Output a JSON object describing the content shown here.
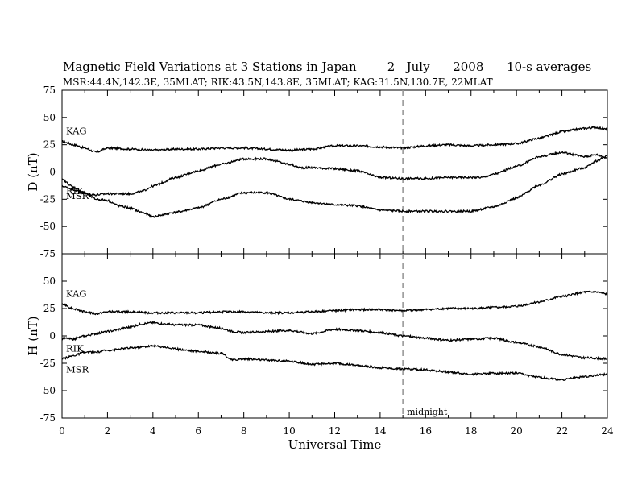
{
  "title": "Magnetic Field Variations at 3 Stations in Japan        2   July      2008      10-s averages",
  "subtitle": "MSR:44.4N,142.3E, 35MLAT;  RIK:43.5N,143.8E, 35MLAT;  KAG:31.5N,130.7E, 22MLAT",
  "chart_data": [
    {
      "type": "line",
      "panel": "D",
      "title": "",
      "ylabel": "D (nT)",
      "xlabel": "",
      "xlim": [
        0,
        24
      ],
      "ylim": [
        -75,
        75
      ],
      "y_ticks": [
        -75,
        -50,
        -25,
        0,
        25,
        50,
        75
      ],
      "x_ticks": [
        0,
        2,
        4,
        6,
        8,
        10,
        12,
        14,
        16,
        18,
        20,
        22,
        24
      ],
      "grid": false,
      "annotations": [
        {
          "type": "vertical-dashed-line",
          "x": 15
        }
      ],
      "series": [
        {
          "name": "KAG",
          "x": [
            0,
            0.5,
            1,
            1.5,
            2,
            3,
            4,
            5,
            6,
            7,
            8,
            9,
            10,
            11,
            12,
            13,
            14,
            15,
            16,
            17,
            18,
            19,
            20,
            21,
            22,
            23,
            23.5,
            24
          ],
          "values": [
            28,
            25,
            22,
            18,
            22,
            21,
            20,
            21,
            21,
            22,
            22,
            21,
            20,
            21,
            24,
            24,
            23,
            22,
            24,
            25,
            24,
            25,
            26,
            31,
            37,
            40,
            41,
            39
          ]
        },
        {
          "name": "MSR",
          "x": [
            0,
            0.5,
            1,
            1.5,
            2,
            3,
            3.5,
            4,
            5,
            6,
            7,
            8,
            9,
            10,
            10.5,
            11,
            12,
            13,
            14,
            15,
            16,
            17,
            18,
            18.5,
            19,
            20,
            21,
            22,
            23,
            23.5,
            24
          ],
          "values": [
            -13,
            -16,
            -20,
            -21,
            -20,
            -20,
            -18,
            -13,
            -5,
            1,
            7,
            12,
            12,
            7,
            4,
            4,
            3,
            1,
            -5,
            -6,
            -6,
            -5,
            -5,
            -5,
            -2,
            5,
            14,
            18,
            14,
            16,
            13
          ]
        },
        {
          "name": "RIK",
          "x": [
            0,
            0.5,
            1,
            1.5,
            2,
            2.5,
            3,
            3.5,
            4,
            5,
            6,
            7,
            8,
            9,
            10,
            11,
            12,
            13,
            14,
            15,
            16,
            17,
            18,
            19,
            20,
            21,
            22,
            23,
            23.5,
            24
          ],
          "values": [
            -7,
            -14,
            -19,
            -25,
            -26,
            -31,
            -33,
            -37,
            -41,
            -37,
            -33,
            -25,
            -19,
            -19,
            -25,
            -28,
            -30,
            -31,
            -35,
            -36,
            -36,
            -36,
            -36,
            -32,
            -24,
            -12,
            -2,
            4,
            10,
            15
          ]
        }
      ]
    },
    {
      "type": "line",
      "panel": "H",
      "title": "",
      "ylabel": "H (nT)",
      "xlabel": "Universal Time",
      "xlim": [
        0,
        24
      ],
      "ylim": [
        -75,
        75
      ],
      "y_ticks": [
        -75,
        -50,
        -25,
        0,
        25,
        50,
        75
      ],
      "x_ticks": [
        0,
        2,
        4,
        6,
        8,
        10,
        12,
        14,
        16,
        18,
        20,
        22,
        24
      ],
      "grid": false,
      "annotations": [
        {
          "type": "vertical-dashed-line",
          "x": 15,
          "label": "midnight"
        }
      ],
      "series": [
        {
          "name": "KAG",
          "x": [
            0,
            0.5,
            1,
            1.5,
            2,
            3,
            4,
            5,
            6,
            7,
            8,
            9,
            10,
            11,
            12,
            13,
            14,
            15,
            16,
            17,
            18,
            19,
            20,
            21,
            22,
            23,
            23.5,
            24
          ],
          "values": [
            29,
            25,
            22,
            20,
            22,
            22,
            21,
            21,
            21,
            22,
            22,
            21,
            21,
            22,
            23,
            24,
            24,
            23,
            24,
            25,
            25,
            26,
            27,
            31,
            36,
            40,
            40,
            38
          ]
        },
        {
          "name": "RIK",
          "x": [
            0,
            0.5,
            1,
            1.5,
            2,
            3,
            3.5,
            4,
            4.5,
            5,
            6,
            7,
            7.5,
            8,
            9,
            10,
            11,
            12,
            13,
            14,
            15,
            16,
            17,
            18,
            19,
            20,
            21,
            22,
            23,
            24
          ],
          "values": [
            -2,
            -3,
            0,
            2,
            4,
            8,
            11,
            12,
            11,
            10,
            10,
            7,
            4,
            3,
            4,
            5,
            2,
            6,
            5,
            3,
            0,
            -2,
            -4,
            -3,
            -2,
            -6,
            -10,
            -17,
            -20,
            -21
          ]
        },
        {
          "name": "MSR",
          "x": [
            0,
            0.5,
            1,
            1.5,
            2,
            3,
            3.5,
            4,
            4.5,
            5,
            6,
            7,
            7.5,
            8,
            9,
            10,
            11,
            12,
            13,
            14,
            15,
            16,
            17,
            18,
            19,
            20,
            21,
            22,
            23,
            24
          ],
          "values": [
            -21,
            -18,
            -15,
            -15,
            -13,
            -11,
            -10,
            -9,
            -10,
            -12,
            -14,
            -16,
            -22,
            -21,
            -22,
            -23,
            -26,
            -25,
            -27,
            -29,
            -30,
            -31,
            -33,
            -35,
            -34,
            -34,
            -38,
            -40,
            -37,
            -35
          ]
        }
      ]
    }
  ]
}
